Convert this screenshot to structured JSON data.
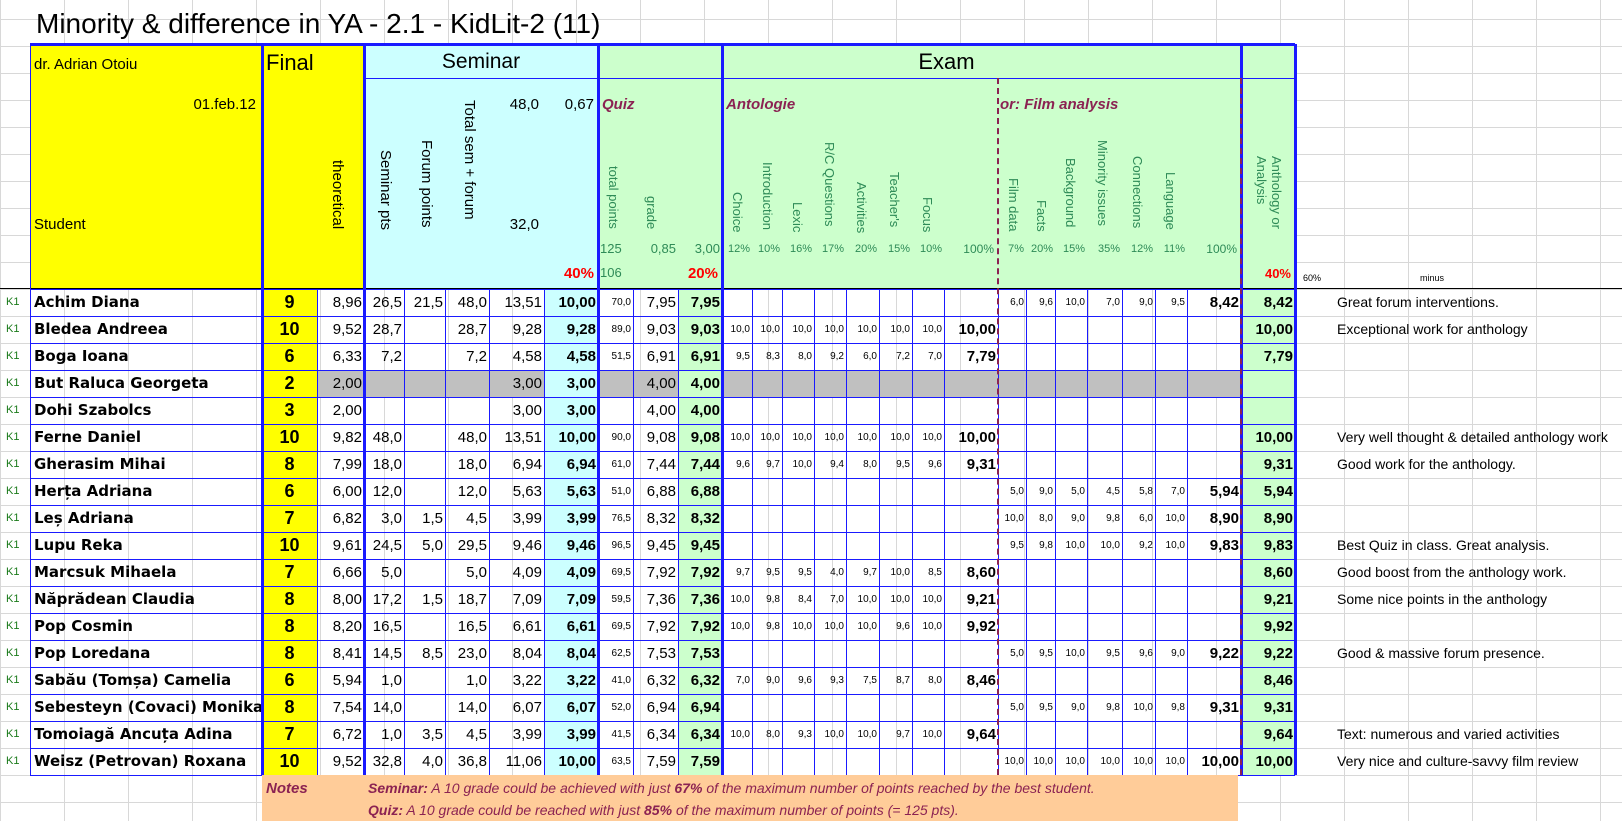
{
  "title": "Minority & difference in YA - 2.1 - KidLit-2 (11)",
  "teacher": "dr. Adrian Otoiu",
  "date": "01.feb.12",
  "student_header": "Student",
  "final_header": "Final",
  "theoretical_header": "theoretical",
  "seminar": {
    "header": "Seminar",
    "col_seminar_pts": "Seminar pts",
    "col_forum_points": "Forum points",
    "col_total": "Total sem + forum",
    "max_value": "48,0",
    "factor": "0,67",
    "threshold": "32,0",
    "weight": "40%"
  },
  "exam": {
    "header": "Exam",
    "quiz": {
      "title": "Quiz",
      "col_total_points": "total points",
      "col_grade": "grade",
      "max_points": "125",
      "factor": "0,85",
      "max_grade": "3,00",
      "threshold": "106",
      "weight": "20%"
    },
    "antologie": {
      "title": "Antologie",
      "cols": [
        "Choice",
        "Introduction",
        "Lexic",
        "R/C Questions",
        "Activities",
        "Teacher's",
        "Focus"
      ],
      "pcts": [
        "12%",
        "10%",
        "16%",
        "17%",
        "20%",
        "15%",
        "10%"
      ],
      "total_pct": "100%"
    },
    "film": {
      "title": "or: Film analysis",
      "cols": [
        "Film data",
        "Facts",
        "Background",
        "Minority issues",
        "Connections",
        "Language"
      ],
      "pcts": [
        "7%",
        "20%",
        "15%",
        "35%",
        "12%",
        "11%"
      ],
      "total_pct": "100%"
    },
    "anthology_or_analysis": "Anthology or Analysis",
    "aa_weight": "40%"
  },
  "side": {
    "pct": "60%",
    "minus": "minus"
  },
  "rows": [
    {
      "group": "K1",
      "name": "Achim Diana",
      "final": "9",
      "theor": "8,96",
      "sem": "26,5",
      "forum": "21,5",
      "total": "48,0",
      "v1": "13,51",
      "semg": "10,00",
      "qpts": "70,0",
      "qg": "7,95",
      "quiz": "7,95",
      "ant": [
        "",
        "",
        "",
        "",
        "",
        "",
        ""
      ],
      "anttot": "",
      "film": [
        "6,0",
        "9,6",
        "10,0",
        "7,0",
        "9,0",
        "9,5"
      ],
      "filmtot": "8,42",
      "aa": "8,42",
      "comment": "Great forum interventions."
    },
    {
      "group": "K1",
      "name": "Bledea Andreea",
      "final": "10",
      "theor": "9,52",
      "sem": "28,7",
      "forum": "",
      "total": "28,7",
      "v1": "9,28",
      "semg": "9,28",
      "qpts": "89,0",
      "qg": "9,03",
      "quiz": "9,03",
      "ant": [
        "10,0",
        "10,0",
        "10,0",
        "10,0",
        "10,0",
        "10,0",
        "10,0"
      ],
      "anttot": "10,00",
      "film": [
        "",
        "",
        "",
        "",
        "",
        ""
      ],
      "filmtot": "",
      "aa": "10,00",
      "comment": "Exceptional work for anthology"
    },
    {
      "group": "K1",
      "name": "Boga Ioana",
      "final": "6",
      "theor": "6,33",
      "sem": "7,2",
      "forum": "",
      "total": "7,2",
      "v1": "4,58",
      "semg": "4,58",
      "qpts": "51,5",
      "qg": "6,91",
      "quiz": "6,91",
      "ant": [
        "9,5",
        "8,3",
        "8,0",
        "9,2",
        "6,0",
        "7,2",
        "7,0"
      ],
      "anttot": "7,79",
      "film": [
        "",
        "",
        "",
        "",
        "",
        ""
      ],
      "filmtot": "",
      "aa": "7,79",
      "comment": ""
    },
    {
      "group": "K1",
      "name": "But Raluca Georgeta",
      "final": "2",
      "theor": "2,00",
      "sem": "",
      "forum": "",
      "total": "",
      "v1": "3,00",
      "semg": "3,00",
      "qpts": "",
      "qg": "4,00",
      "quiz": "4,00",
      "ant": [
        "",
        "",
        "",
        "",
        "",
        "",
        ""
      ],
      "anttot": "",
      "film": [
        "",
        "",
        "",
        "",
        "",
        ""
      ],
      "filmtot": "",
      "aa": "",
      "comment": "",
      "grey": true
    },
    {
      "group": "K1",
      "name": "Dohi Szabolcs",
      "final": "3",
      "theor": "2,00",
      "sem": "",
      "forum": "",
      "total": "",
      "v1": "3,00",
      "semg": "3,00",
      "qpts": "",
      "qg": "4,00",
      "quiz": "4,00",
      "ant": [
        "",
        "",
        "",
        "",
        "",
        "",
        ""
      ],
      "anttot": "",
      "film": [
        "",
        "",
        "",
        "",
        "",
        ""
      ],
      "filmtot": "",
      "aa": "",
      "comment": ""
    },
    {
      "group": "K1",
      "name": "Ferne Daniel",
      "final": "10",
      "theor": "9,82",
      "sem": "48,0",
      "forum": "",
      "total": "48,0",
      "v1": "13,51",
      "semg": "10,00",
      "qpts": "90,0",
      "qg": "9,08",
      "quiz": "9,08",
      "ant": [
        "10,0",
        "10,0",
        "10,0",
        "10,0",
        "10,0",
        "10,0",
        "10,0"
      ],
      "anttot": "10,00",
      "film": [
        "",
        "",
        "",
        "",
        "",
        ""
      ],
      "filmtot": "",
      "aa": "10,00",
      "comment": "Very well thought & detailed anthology work"
    },
    {
      "group": "K1",
      "name": "Gherasim Mihai",
      "final": "8",
      "theor": "7,99",
      "sem": "18,0",
      "forum": "",
      "total": "18,0",
      "v1": "6,94",
      "semg": "6,94",
      "qpts": "61,0",
      "qg": "7,44",
      "quiz": "7,44",
      "ant": [
        "9,6",
        "9,7",
        "10,0",
        "9,4",
        "8,0",
        "9,5",
        "9,6"
      ],
      "anttot": "9,31",
      "film": [
        "",
        "",
        "",
        "",
        "",
        ""
      ],
      "filmtot": "",
      "aa": "9,31",
      "comment": "Good work for the anthology."
    },
    {
      "group": "K1",
      "name": "Herța Adriana",
      "final": "6",
      "theor": "6,00",
      "sem": "12,0",
      "forum": "",
      "total": "12,0",
      "v1": "5,63",
      "semg": "5,63",
      "qpts": "51,0",
      "qg": "6,88",
      "quiz": "6,88",
      "ant": [
        "",
        "",
        "",
        "",
        "",
        "",
        ""
      ],
      "anttot": "",
      "film": [
        "5,0",
        "9,0",
        "5,0",
        "4,5",
        "5,8",
        "7,0"
      ],
      "filmtot": "5,94",
      "aa": "5,94",
      "comment": ""
    },
    {
      "group": "K1",
      "name": "Leș Adriana",
      "final": "7",
      "theor": "6,82",
      "sem": "3,0",
      "forum": "1,5",
      "total": "4,5",
      "v1": "3,99",
      "semg": "3,99",
      "qpts": "76,5",
      "qg": "8,32",
      "quiz": "8,32",
      "ant": [
        "",
        "",
        "",
        "",
        "",
        "",
        ""
      ],
      "anttot": "",
      "film": [
        "10,0",
        "8,0",
        "9,0",
        "9,8",
        "6,0",
        "10,0"
      ],
      "filmtot": "8,90",
      "aa": "8,90",
      "comment": ""
    },
    {
      "group": "K1",
      "name": "Lupu Reka",
      "final": "10",
      "theor": "9,61",
      "sem": "24,5",
      "forum": "5,0",
      "total": "29,5",
      "v1": "9,46",
      "semg": "9,46",
      "qpts": "96,5",
      "qg": "9,45",
      "quiz": "9,45",
      "ant": [
        "",
        "",
        "",
        "",
        "",
        "",
        ""
      ],
      "anttot": "",
      "film": [
        "9,5",
        "9,8",
        "10,0",
        "10,0",
        "9,2",
        "10,0"
      ],
      "filmtot": "9,83",
      "aa": "9,83",
      "comment": "Best Quiz in class. Great analysis."
    },
    {
      "group": "K1",
      "name": "Marcsuk Mihaela",
      "final": "7",
      "theor": "6,66",
      "sem": "5,0",
      "forum": "",
      "total": "5,0",
      "v1": "4,09",
      "semg": "4,09",
      "qpts": "69,5",
      "qg": "7,92",
      "quiz": "7,92",
      "ant": [
        "9,7",
        "9,5",
        "9,5",
        "4,0",
        "9,7",
        "10,0",
        "8,5"
      ],
      "anttot": "8,60",
      "film": [
        "",
        "",
        "",
        "",
        "",
        ""
      ],
      "filmtot": "",
      "aa": "8,60",
      "comment": "Good boost from the anthology work."
    },
    {
      "group": "K1",
      "name": "Năprădean Claudia",
      "final": "8",
      "theor": "8,00",
      "sem": "17,2",
      "forum": "1,5",
      "total": "18,7",
      "v1": "7,09",
      "semg": "7,09",
      "qpts": "59,5",
      "qg": "7,36",
      "quiz": "7,36",
      "ant": [
        "10,0",
        "9,8",
        "8,4",
        "7,0",
        "10,0",
        "10,0",
        "10,0"
      ],
      "anttot": "9,21",
      "film": [
        "",
        "",
        "",
        "",
        "",
        ""
      ],
      "filmtot": "",
      "aa": "9,21",
      "comment": "Some nice points in the anthology"
    },
    {
      "group": "K1",
      "name": "Pop Cosmin",
      "final": "8",
      "theor": "8,20",
      "sem": "16,5",
      "forum": "",
      "total": "16,5",
      "v1": "6,61",
      "semg": "6,61",
      "qpts": "69,5",
      "qg": "7,92",
      "quiz": "7,92",
      "ant": [
        "10,0",
        "9,8",
        "10,0",
        "10,0",
        "10,0",
        "9,6",
        "10,0"
      ],
      "anttot": "9,92",
      "film": [
        "",
        "",
        "",
        "",
        "",
        ""
      ],
      "filmtot": "",
      "aa": "9,92",
      "comment": ""
    },
    {
      "group": "K1",
      "name": "Pop Loredana",
      "final": "8",
      "theor": "8,41",
      "sem": "14,5",
      "forum": "8,5",
      "total": "23,0",
      "v1": "8,04",
      "semg": "8,04",
      "qpts": "62,5",
      "qg": "7,53",
      "quiz": "7,53",
      "ant": [
        "",
        "",
        "",
        "",
        "",
        "",
        ""
      ],
      "anttot": "",
      "film": [
        "5,0",
        "9,5",
        "10,0",
        "9,5",
        "9,6",
        "9,0"
      ],
      "filmtot": "9,22",
      "aa": "9,22",
      "comment": "Good & massive forum presence."
    },
    {
      "group": "K1",
      "name": "Sabău (Tomșa) Camelia",
      "final": "6",
      "theor": "5,94",
      "sem": "1,0",
      "forum": "",
      "total": "1,0",
      "v1": "3,22",
      "semg": "3,22",
      "qpts": "41,0",
      "qg": "6,32",
      "quiz": "6,32",
      "ant": [
        "7,0",
        "9,0",
        "9,6",
        "9,3",
        "7,5",
        "8,7",
        "8,0"
      ],
      "anttot": "8,46",
      "film": [
        "",
        "",
        "",
        "",
        "",
        ""
      ],
      "filmtot": "",
      "aa": "8,46",
      "comment": ""
    },
    {
      "group": "K1",
      "name": "Sebesteyn (Covaci) Monika",
      "final": "8",
      "theor": "7,54",
      "sem": "14,0",
      "forum": "",
      "total": "14,0",
      "v1": "6,07",
      "semg": "6,07",
      "qpts": "52,0",
      "qg": "6,94",
      "quiz": "6,94",
      "ant": [
        "",
        "",
        "",
        "",
        "",
        "",
        ""
      ],
      "anttot": "",
      "film": [
        "5,0",
        "9,5",
        "9,0",
        "9,8",
        "10,0",
        "9,8"
      ],
      "filmtot": "9,31",
      "aa": "9,31",
      "comment": ""
    },
    {
      "group": "K1",
      "name": "Tomoiagă Ancuța Adina",
      "final": "7",
      "theor": "6,72",
      "sem": "1,0",
      "forum": "3,5",
      "total": "4,5",
      "v1": "3,99",
      "semg": "3,99",
      "qpts": "41,5",
      "qg": "6,34",
      "quiz": "6,34",
      "ant": [
        "10,0",
        "8,0",
        "9,3",
        "10,0",
        "10,0",
        "9,7",
        "10,0"
      ],
      "anttot": "9,64",
      "film": [
        "",
        "",
        "",
        "",
        "",
        ""
      ],
      "filmtot": "",
      "aa": "9,64",
      "comment": "Text: numerous and varied activities"
    },
    {
      "group": "K1",
      "name": "Weisz (Petrovan) Roxana",
      "final": "10",
      "theor": "9,52",
      "sem": "32,8",
      "forum": "4,0",
      "total": "36,8",
      "v1": "11,06",
      "semg": "10,00",
      "qpts": "63,5",
      "qg": "7,59",
      "quiz": "7,59",
      "ant": [
        "",
        "",
        "",
        "",
        "",
        "",
        ""
      ],
      "anttot": "",
      "film": [
        "10,0",
        "10,0",
        "10,0",
        "10,0",
        "10,0",
        "10,0"
      ],
      "filmtot": "10,00",
      "aa": "10,00",
      "comment": "Very nice and culture-savvy film review"
    }
  ],
  "notes": {
    "label": "Notes",
    "seminar_label": "Seminar:",
    "seminar_pre": "A 10 grade could be achieved with just",
    "seminar_pct": "67%",
    "seminar_post": "of the maximum number of points reached by the best student.",
    "quiz_label": "Quiz:",
    "quiz_pre": "A 10 grade could be reached with just",
    "quiz_pct": "85%",
    "quiz_post": "of the maximum number of points (= 125 pts)."
  }
}
